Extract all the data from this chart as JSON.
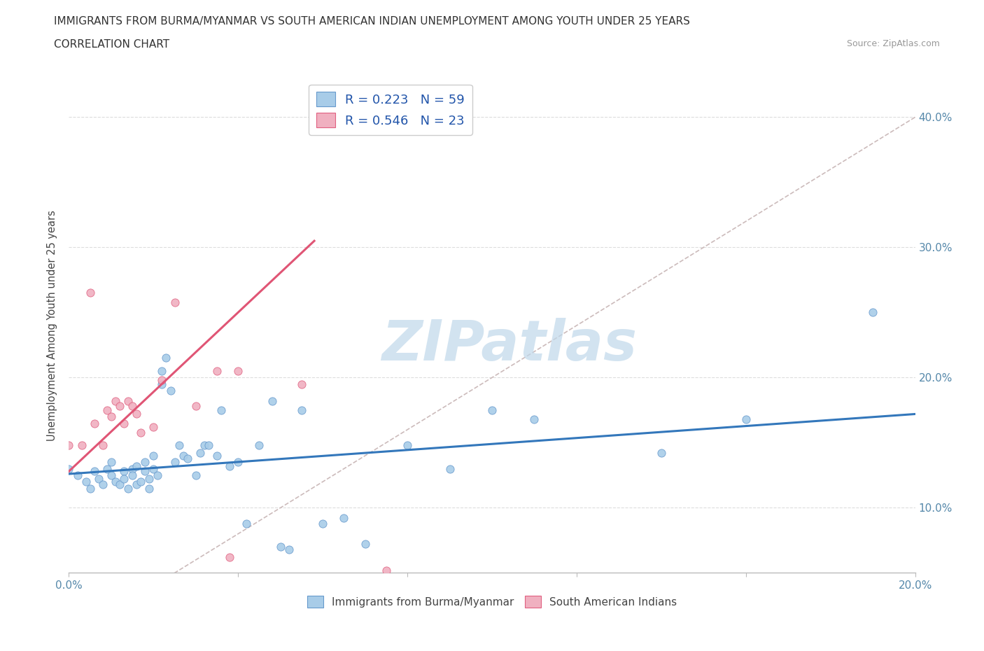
{
  "title_line1": "IMMIGRANTS FROM BURMA/MYANMAR VS SOUTH AMERICAN INDIAN UNEMPLOYMENT AMONG YOUTH UNDER 25 YEARS",
  "title_line2": "CORRELATION CHART",
  "source_text": "Source: ZipAtlas.com",
  "ylabel": "Unemployment Among Youth under 25 years",
  "xlim": [
    0.0,
    0.2
  ],
  "ylim": [
    0.05,
    0.43
  ],
  "x_ticks": [
    0.0,
    0.04,
    0.08,
    0.12,
    0.16,
    0.2
  ],
  "y_ticks": [
    0.1,
    0.2,
    0.3,
    0.4
  ],
  "y_tick_labels": [
    "10.0%",
    "20.0%",
    "30.0%",
    "40.0%"
  ],
  "x_tick_labels": [
    "0.0%",
    "",
    "",
    "",
    "",
    "20.0%"
  ],
  "blue_color": "#a8cce8",
  "pink_color": "#f0b0c0",
  "blue_edge_color": "#6699cc",
  "pink_edge_color": "#e06080",
  "blue_line_color": "#3377bb",
  "pink_line_color": "#e05575",
  "ref_line_color": "#ccbbbb",
  "grid_color": "#dddddd",
  "R_blue": 0.223,
  "N_blue": 59,
  "R_pink": 0.546,
  "N_pink": 23,
  "blue_scatter_x": [
    0.0,
    0.002,
    0.004,
    0.005,
    0.006,
    0.007,
    0.008,
    0.009,
    0.01,
    0.01,
    0.011,
    0.012,
    0.013,
    0.013,
    0.014,
    0.015,
    0.015,
    0.016,
    0.016,
    0.017,
    0.018,
    0.018,
    0.019,
    0.019,
    0.02,
    0.02,
    0.021,
    0.022,
    0.022,
    0.023,
    0.024,
    0.025,
    0.026,
    0.027,
    0.028,
    0.03,
    0.031,
    0.032,
    0.033,
    0.035,
    0.036,
    0.038,
    0.04,
    0.042,
    0.045,
    0.048,
    0.05,
    0.052,
    0.055,
    0.06,
    0.065,
    0.07,
    0.08,
    0.09,
    0.1,
    0.11,
    0.14,
    0.16,
    0.19
  ],
  "blue_scatter_y": [
    0.13,
    0.125,
    0.12,
    0.115,
    0.128,
    0.122,
    0.118,
    0.13,
    0.135,
    0.125,
    0.12,
    0.118,
    0.128,
    0.122,
    0.115,
    0.13,
    0.125,
    0.132,
    0.118,
    0.12,
    0.128,
    0.135,
    0.115,
    0.122,
    0.13,
    0.14,
    0.125,
    0.195,
    0.205,
    0.215,
    0.19,
    0.135,
    0.148,
    0.14,
    0.138,
    0.125,
    0.142,
    0.148,
    0.148,
    0.14,
    0.175,
    0.132,
    0.135,
    0.088,
    0.148,
    0.182,
    0.07,
    0.068,
    0.175,
    0.088,
    0.092,
    0.072,
    0.148,
    0.13,
    0.175,
    0.168,
    0.142,
    0.168,
    0.25
  ],
  "pink_scatter_x": [
    0.0,
    0.003,
    0.005,
    0.006,
    0.008,
    0.009,
    0.01,
    0.011,
    0.012,
    0.013,
    0.014,
    0.015,
    0.016,
    0.017,
    0.02,
    0.022,
    0.025,
    0.03,
    0.035,
    0.038,
    0.04,
    0.055,
    0.075
  ],
  "pink_scatter_y": [
    0.148,
    0.148,
    0.265,
    0.165,
    0.148,
    0.175,
    0.17,
    0.182,
    0.178,
    0.165,
    0.182,
    0.178,
    0.172,
    0.158,
    0.162,
    0.198,
    0.258,
    0.178,
    0.205,
    0.062,
    0.205,
    0.195,
    0.052
  ],
  "blue_trend_x": [
    0.0,
    0.2
  ],
  "blue_trend_y": [
    0.126,
    0.172
  ],
  "pink_trend_x": [
    0.0,
    0.058
  ],
  "pink_trend_y": [
    0.128,
    0.305
  ],
  "watermark": "ZIPatlas",
  "watermark_color": "#c0d8ea",
  "watermark_fontsize": 58
}
